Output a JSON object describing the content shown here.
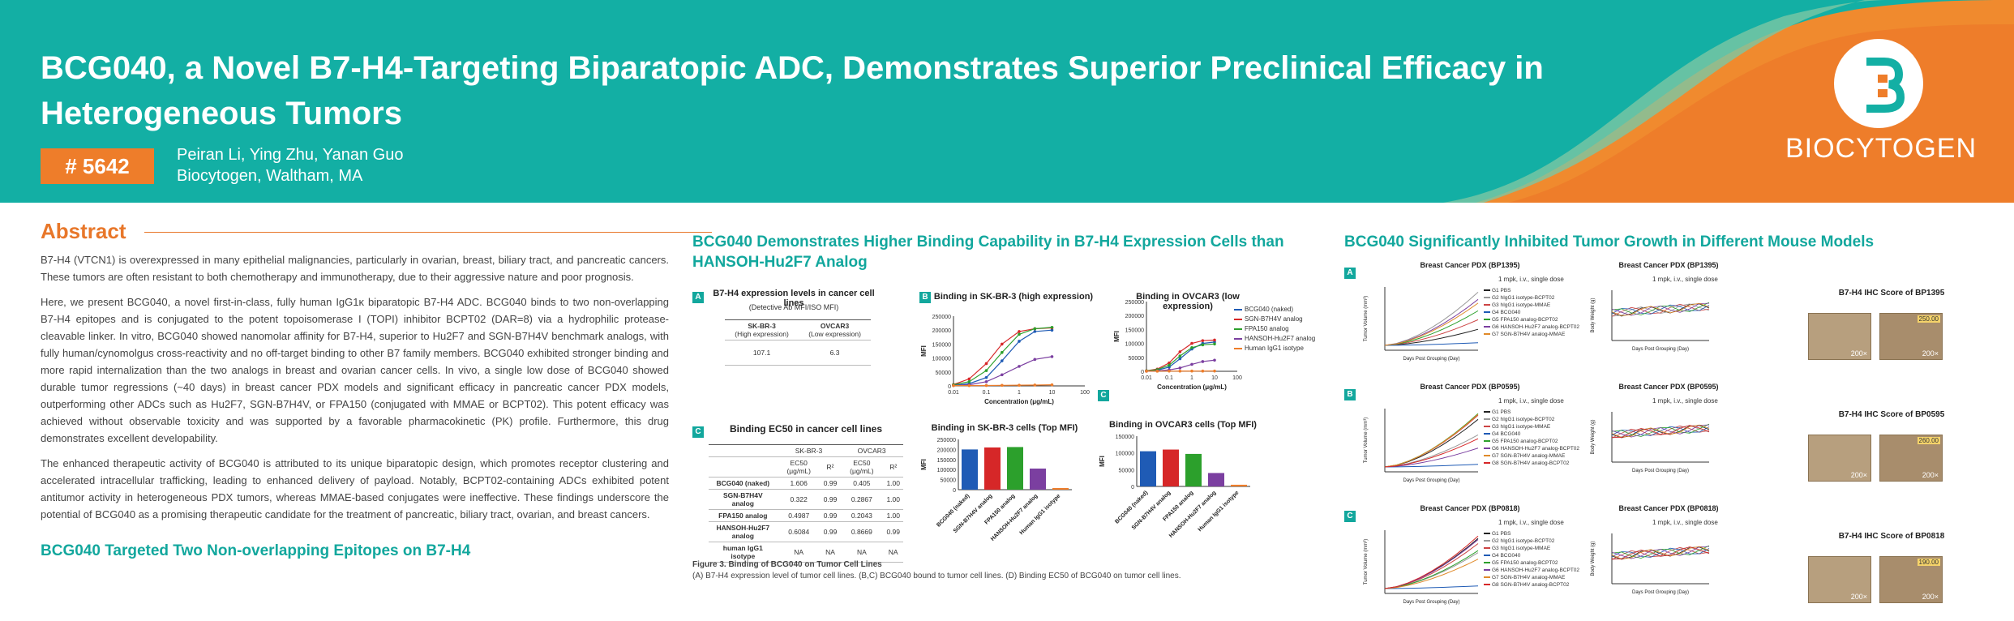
{
  "header": {
    "title": "BCG040, a Novel B7-H4-Targeting Biparatopic ADC, Demonstrates Superior Preclinical Efficacy in Heterogeneous Tumors",
    "badge": "# 5642",
    "authors": "Peiran Li, Ying Zhu, Yanan Guo",
    "affiliation": "Biocytogen, Waltham, MA",
    "logo_text": "BIOCYTOGEN"
  },
  "abstract": {
    "heading": "Abstract",
    "p1": "B7-H4 (VTCN1) is overexpressed in many epithelial malignancies, particularly in ovarian, breast, biliary tract, and pancreatic cancers. These tumors are often resistant to both chemotherapy and immunotherapy, due to their aggressive nature and poor prognosis.",
    "p2": "Here, we present BCG040, a novel first-in-class, fully human IgG1κ biparatopic B7-H4 ADC. BCG040 binds to two non-overlapping B7-H4 epitopes and is conjugated to the potent topoisomerase I (TOPI) inhibitor BCPT02 (DAR=8) via a hydrophilic protease-cleavable linker. In vitro, BCG040 showed nanomolar affinity for B7-H4, superior to Hu2F7 and SGN-B7H4V benchmark analogs, with fully human/cynomolgus cross-reactivity and no off-target binding to other B7 family members. BCG040 exhibited stronger binding and more rapid internalization than the two analogs in breast and ovarian cancer cells. In vivo, a single low dose of BCG040 showed durable tumor regressions (~40 days) in breast cancer PDX models and significant efficacy in pancreatic cancer PDX models, outperforming other ADCs such as Hu2F7, SGN-B7H4V, or FPA150 (conjugated with MMAE or BCPT02). This potent efficacy was achieved without observable toxicity and was supported by a favorable pharmacokinetic (PK) profile. Furthermore, this drug demonstrates excellent developability.",
    "p3": "The enhanced therapeutic activity of BCG040 is attributed to its unique biparatopic design, which promotes receptor clustering and accelerated intracellular trafficking, leading to enhanced delivery of payload. Notably, BCPT02-containing ADCs exhibited potent antitumor activity in heterogeneous PDX tumors, whereas MMAE-based conjugates were ineffective. These findings underscore the potential of BCG040 as a promising therapeutic candidate for the treatment of pancreatic, biliary tract, ovarian, and breast cancers.",
    "next_heading": "BCG040 Targeted Two Non-overlapping Epitopes on B7-H4"
  },
  "binding": {
    "heading": "BCG040 Demonstrates Higher Binding Capability in B7-H4 Expression Cells than HANSOH-Hu2F7 Analog",
    "panelA": {
      "label": "A",
      "title": "B7-H4 expression levels in cancer cell lines",
      "subtitle": "(Detective Ab MFI/ISO MFI)",
      "col1": "SK-BR-3",
      "col1b": "(High expression)",
      "col2": "OVCAR3",
      "col2b": "(Low expression)",
      "v1": "107.1",
      "v2": "6.3"
    },
    "panelB": {
      "label": "B",
      "title": "Binding in SK-BR-3 (high expression)"
    },
    "panelC1": {
      "label": "C",
      "title": "Binding in OVCAR3 (low expression)"
    },
    "panelC": {
      "label": "C",
      "title": "Binding EC50 in cancer cell lines",
      "grp1": "SK-BR-3",
      "grp2": "OVCAR3",
      "h_ec50": "EC50 (μg/mL)",
      "h_r2": "R²",
      "rows": [
        {
          "name": "BCG040 (naked)",
          "a": "1.606",
          "b": "0.99",
          "c": "0.405",
          "d": "1.00"
        },
        {
          "name": "SGN-B7H4V analog",
          "a": "0.322",
          "b": "0.99",
          "c": "0.2867",
          "d": "1.00"
        },
        {
          "name": "FPA150 analog",
          "a": "0.4987",
          "b": "0.99",
          "c": "0.2043",
          "d": "1.00"
        },
        {
          "name": "HANSOH-Hu2F7 analog",
          "a": "0.6084",
          "b": "0.99",
          "c": "0.8669",
          "d": "0.99"
        },
        {
          "name": "human IgG1 isotype",
          "a": "NA",
          "b": "NA",
          "c": "NA",
          "d": "NA"
        }
      ]
    },
    "barsB": {
      "title": "Binding in SK-BR-3 cells (Top MFI)"
    },
    "barsC": {
      "title": "Binding in OVCAR3 cells (Top MFI)"
    },
    "legend": [
      "BCG040 (naked)",
      "SGN-B7H4V analog",
      "FPA150 analog",
      "HANSOH-Hu2F7 analog",
      "Human IgG1 isotype"
    ],
    "caption_title": "Figure 3. Binding of BCG040 on Tumor Cell Lines",
    "caption": "(A) B7-H4 expression level of tumor cell lines. (B,C) BCG040 bound to tumor cell lines. (D) Binding EC50 of BCG040 on tumor cell lines."
  },
  "efficacy": {
    "heading": "BCG040 Significantly Inhibited Tumor Growth in Different Mouse Models",
    "rows": [
      {
        "label": "A",
        "tv_title": "Breast Cancer PDX (BP1395)",
        "bw_title": "Breast Cancer PDX (BP1395)",
        "ihc_title": "B7-H4 IHC Score of BP1395",
        "ihc_value": "250.00",
        "dose": "1 mpk, i.v., single dose",
        "legend": [
          "G1 PBS",
          "G2 hIgG1 isotype-BCPT02",
          "G3 hIgG1 isotype-MMAE",
          "G4 BCG040",
          "G5 FPA150 analog-BCPT02",
          "G6 HANSOH-Hu2F7 analog-BCPT02",
          "G7 SGN-B7H4V analog-MMAE"
        ]
      },
      {
        "label": "B",
        "tv_title": "Breast Cancer PDX (BP0595)",
        "bw_title": "Breast Cancer PDX (BP0595)",
        "ihc_title": "B7-H4 IHC Score of BP0595",
        "ihc_value": "260.00",
        "dose": "1 mpk, i.v., single dose",
        "legend": [
          "G1 PBS",
          "G2 hIgG1 isotype-BCPT02",
          "G3 hIgG1 isotype-MMAE",
          "G4 BCG040",
          "G5 FPA150 analog-BCPT02",
          "G6 HANSOH-Hu2F7 analog-BCPT02",
          "G7 SGN-B7H4V analog-MMAE",
          "G8 SGN-B7H4V analog-BCPT02"
        ]
      },
      {
        "label": "C",
        "tv_title": "Breast Cancer PDX (BP0818)",
        "bw_title": "Breast Cancer PDX (BP0818)",
        "ihc_title": "B7-H4 IHC Score of BP0818",
        "ihc_value": "190.00",
        "dose": "1 mpk, i.v., single dose",
        "legend": [
          "G1 PBS",
          "G2 hIgG1 isotype-BCPT02",
          "G3 hIgG1 isotype-MMAE",
          "G4 BCG040",
          "G5 FPA150 analog-BCPT02",
          "G6 HANSOH-Hu2F7 analog-BCPT02",
          "G7 SGN-B7H4V analog-MMAE",
          "G8 SGN-B7H4V analog-BCPT02"
        ]
      }
    ],
    "tv_ylabel": "Tumor Volume (mm³)",
    "bw_ylabel": "Body Weight (g)",
    "xlabel": "Days Post Grouping (Day)",
    "mag": "200×"
  },
  "chart_data": [
    {
      "type": "bar",
      "title": "Binding in SK-BR-3 cells (Top MFI)",
      "ylabel": "MFI",
      "categories": [
        "BCG040 (naked)",
        "SGN-B7H4V analog",
        "FPA150 analog",
        "HANSOH-Hu2F7 analog",
        "Human IgG1 isotype"
      ],
      "values": [
        200000,
        210000,
        212000,
        105000,
        8000
      ],
      "ylim": [
        0,
        250000
      ],
      "yticks": [
        "250000",
        "200000",
        "150000",
        "100000",
        "50000",
        "0"
      ],
      "colors": [
        "#1f5bb5",
        "#d62728",
        "#2ca02c",
        "#7b3fa0",
        "#ee7d2a"
      ]
    },
    {
      "type": "bar",
      "title": "Binding in OVCAR3 cells (Top MFI)",
      "ylabel": "MFI",
      "categories": [
        "BCG040 (naked)",
        "SGN-B7H4V analog",
        "FPA150 analog",
        "HANSOH-Hu2F7 analog",
        "Human IgG1 isotype"
      ],
      "values": [
        105000,
        110000,
        97000,
        40000,
        5000
      ],
      "ylim": [
        0,
        150000
      ],
      "yticks": [
        "150000",
        "100000",
        "50000",
        "0"
      ],
      "colors": [
        "#1f5bb5",
        "#d62728",
        "#2ca02c",
        "#7b3fa0",
        "#ee7d2a"
      ]
    },
    {
      "type": "line",
      "title": "Binding in SK-BR-3 (high expression)",
      "xlabel": "Concentration (μg/mL)",
      "ylabel": "MFI",
      "xticks": [
        "0.01",
        "0.1",
        "1",
        "10",
        "100"
      ],
      "yticks": [
        "250000",
        "200000",
        "150000",
        "100000",
        "50000",
        "0"
      ],
      "x": [
        0.01,
        0.03,
        0.1,
        0.3,
        1,
        3,
        10
      ],
      "ylim": [
        0,
        250000
      ],
      "series": [
        {
          "name": "BCG040 (naked)",
          "values": [
            2000,
            8000,
            30000,
            90000,
            160000,
            195000,
            200000
          ]
        },
        {
          "name": "SGN-B7H4V analog",
          "values": [
            5000,
            25000,
            80000,
            150000,
            195000,
            205000,
            208000
          ]
        },
        {
          "name": "FPA150 analog",
          "values": [
            4000,
            15000,
            55000,
            120000,
            185000,
            205000,
            210000
          ]
        },
        {
          "name": "HANSOH-Hu2F7 analog",
          "values": [
            1000,
            4000,
            15000,
            40000,
            70000,
            95000,
            105000
          ]
        },
        {
          "name": "Human IgG1 isotype",
          "values": [
            1000,
            1000,
            1500,
            2000,
            2500,
            3000,
            4000
          ]
        }
      ]
    },
    {
      "type": "line",
      "title": "Binding in OVCAR3 (low expression)",
      "xlabel": "Concentration (μg/mL)",
      "ylabel": "MFI",
      "xticks": [
        "0.01",
        "0.1",
        "1",
        "10",
        "100"
      ],
      "yticks": [
        "250000",
        "200000",
        "150000",
        "100000",
        "50000",
        "0"
      ],
      "x": [
        0.01,
        0.03,
        0.1,
        0.3,
        1,
        3,
        10
      ],
      "ylim": [
        0,
        250000
      ],
      "series": [
        {
          "name": "BCG040 (naked)",
          "values": [
            1000,
            4000,
            15000,
            45000,
            80000,
            100000,
            105000
          ]
        },
        {
          "name": "SGN-B7H4V analog",
          "values": [
            2000,
            8000,
            30000,
            70000,
            100000,
            110000,
            112000
          ]
        },
        {
          "name": "FPA150 analog",
          "values": [
            1500,
            6000,
            22000,
            55000,
            85000,
            95000,
            98000
          ]
        },
        {
          "name": "HANSOH-Hu2F7 analog",
          "values": [
            500,
            1500,
            5000,
            12000,
            25000,
            35000,
            40000
          ]
        },
        {
          "name": "Human IgG1 isotype",
          "values": [
            500,
            500,
            600,
            700,
            800,
            900,
            1000
          ]
        }
      ]
    }
  ],
  "colors": {
    "teal": "#13afa4",
    "orange": "#ee7d2a"
  }
}
